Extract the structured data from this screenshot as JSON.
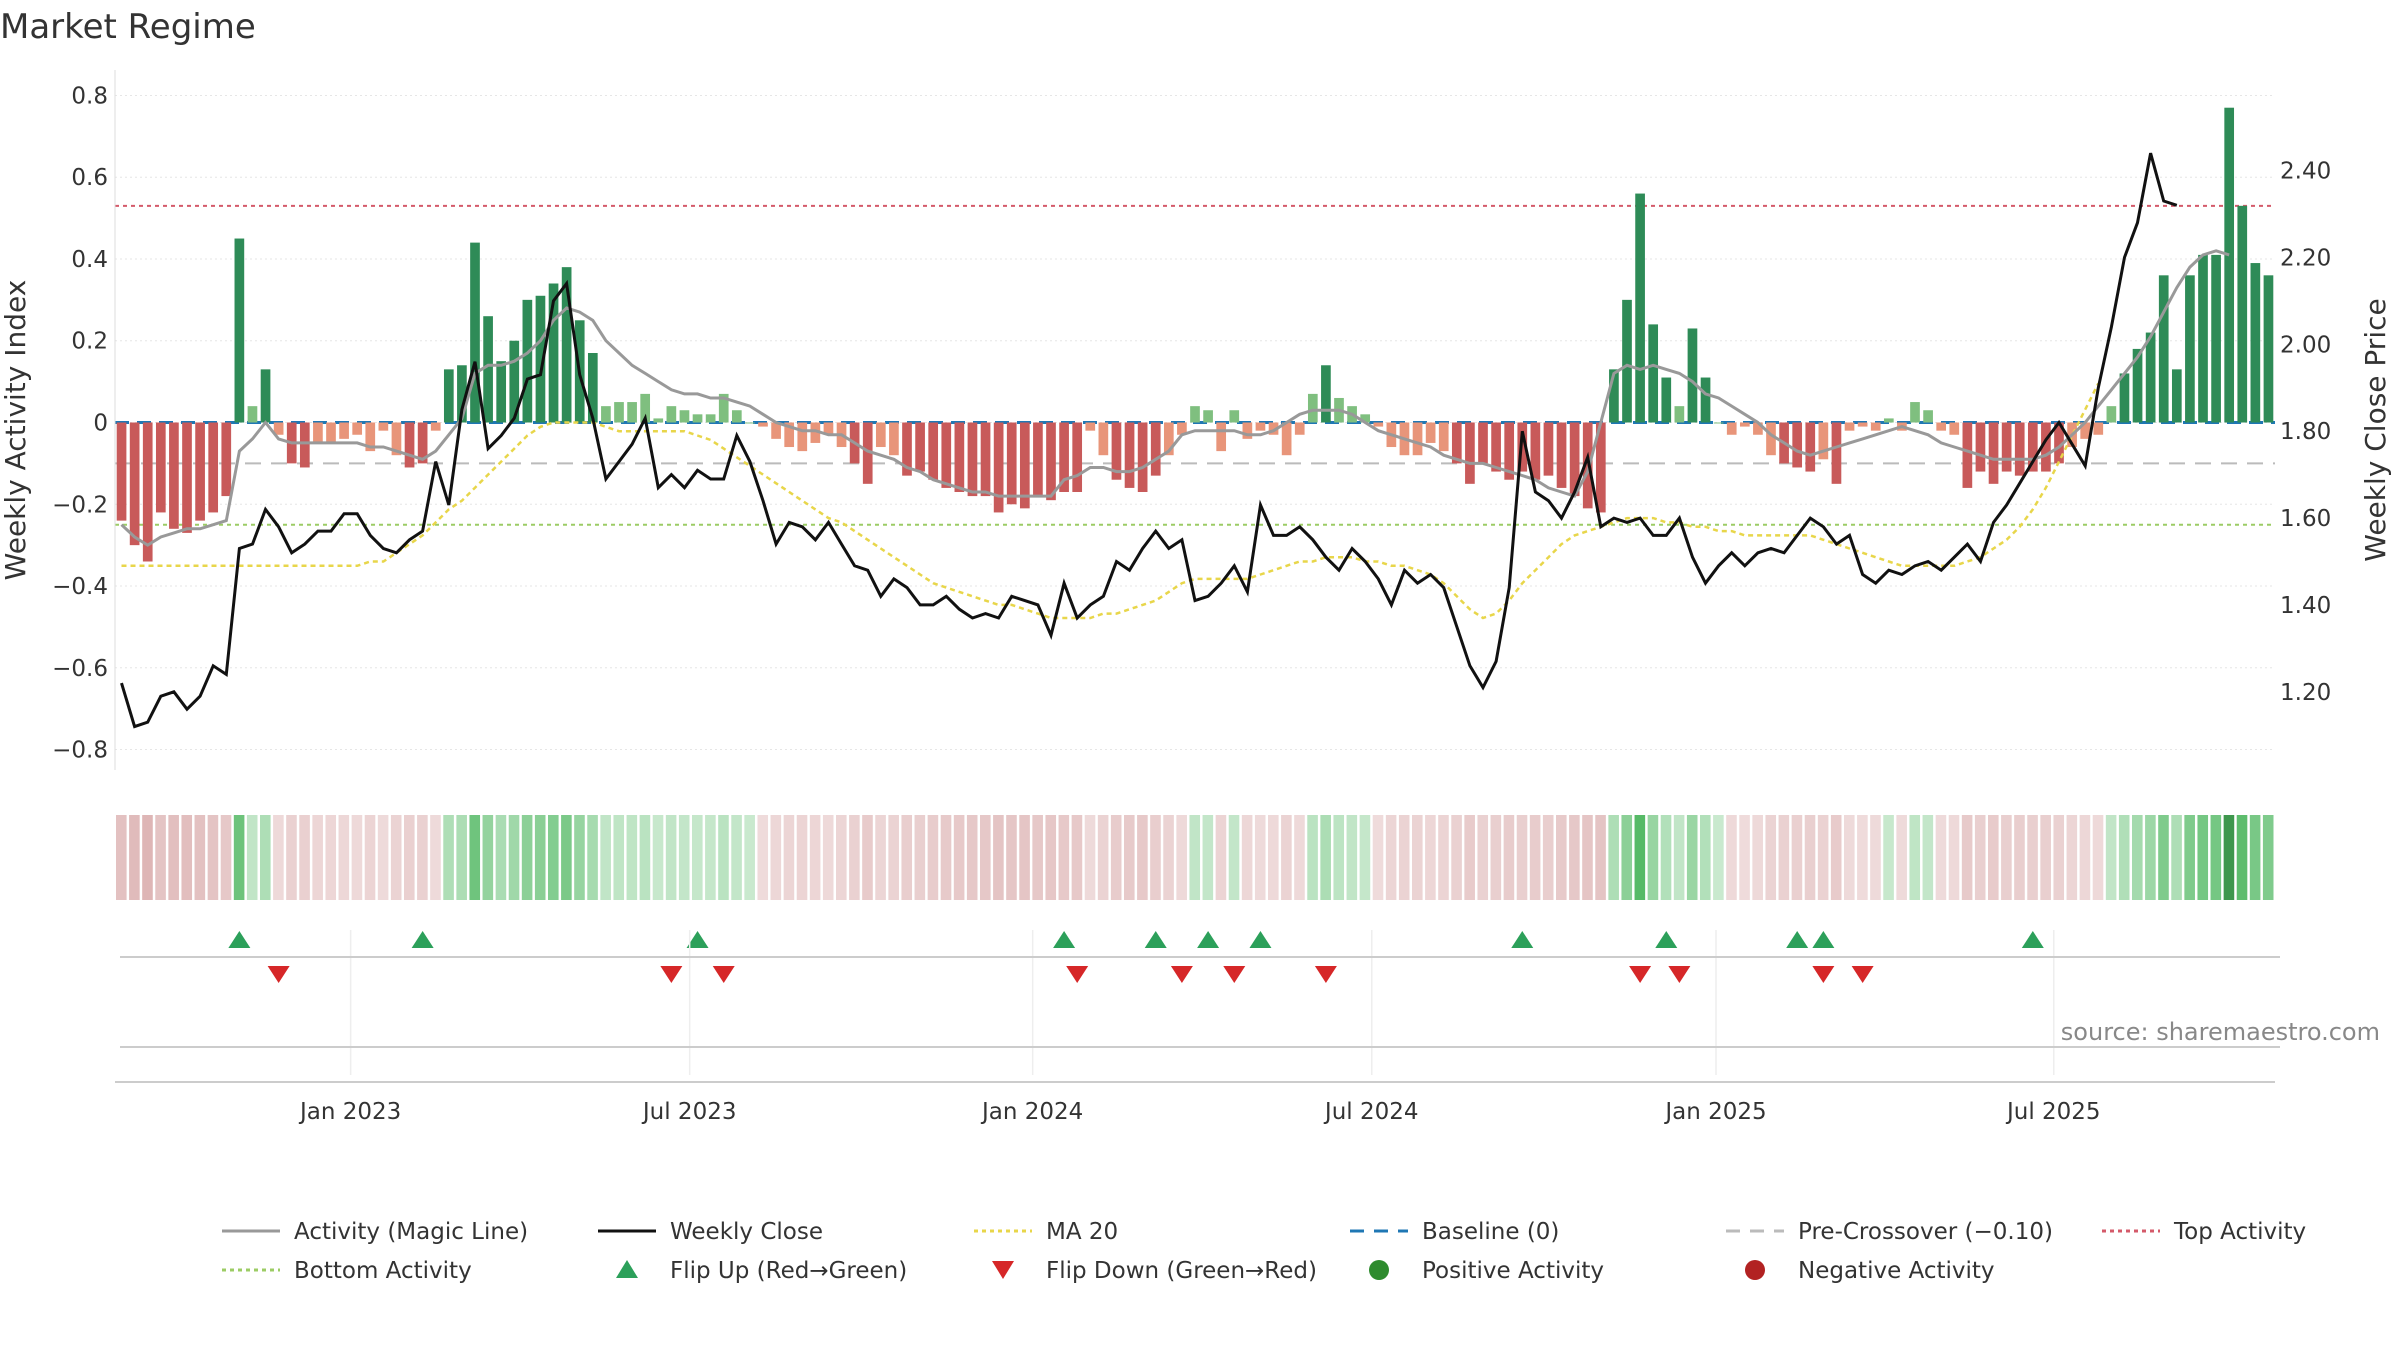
{
  "chart_data": {
    "type": "bar+line",
    "title": "Market Regime",
    "ylabel_left": "Weekly Activity Index",
    "ylabel_right": "Weekly Close Price",
    "ylim_left": [
      -0.85,
      0.85
    ],
    "ylim_right": [
      1.02,
      2.62
    ],
    "yticks_left": [
      "0.8",
      "0.6",
      "0.4",
      "0.2",
      "0",
      "−0.2",
      "−0.4",
      "−0.6",
      "−0.8"
    ],
    "yticks_left_values": [
      0.8,
      0.6,
      0.4,
      0.2,
      0,
      -0.2,
      -0.4,
      -0.6,
      -0.8
    ],
    "yticks_right": [
      "2.40",
      "2.20",
      "2.00",
      "1.80",
      "1.60",
      "1.40",
      "1.20"
    ],
    "yticks_right_values": [
      2.4,
      2.2,
      2.0,
      1.8,
      1.6,
      1.4,
      1.2
    ],
    "x_start": "2022-08-29",
    "xticks": [
      {
        "label": "Jan 2023",
        "week": 18
      },
      {
        "label": "Jul 2023",
        "week": 43.9
      },
      {
        "label": "Jan 2024",
        "week": 70.1
      },
      {
        "label": "Jul 2024",
        "week": 96
      },
      {
        "label": "Jan 2025",
        "week": 122.3
      },
      {
        "label": "Jul 2025",
        "week": 148.1
      }
    ],
    "series": [
      {
        "name": "Weekly Activity Index (bars)",
        "values": [
          -0.24,
          -0.3,
          -0.34,
          -0.22,
          -0.26,
          -0.27,
          -0.24,
          -0.22,
          -0.18,
          0.45,
          0.04,
          0.13,
          -0.03,
          -0.1,
          -0.11,
          -0.05,
          -0.05,
          -0.04,
          -0.03,
          -0.07,
          -0.02,
          -0.08,
          -0.11,
          -0.1,
          -0.02,
          0.13,
          0.14,
          0.44,
          0.26,
          0.15,
          0.2,
          0.3,
          0.31,
          0.34,
          0.38,
          0.25,
          0.17,
          0.04,
          0.05,
          0.05,
          0.07,
          0.01,
          0.04,
          0.03,
          0.02,
          0.02,
          0.07,
          0.03,
          0.0,
          -0.01,
          -0.04,
          -0.06,
          -0.07,
          -0.05,
          -0.03,
          -0.06,
          -0.1,
          -0.15,
          -0.06,
          -0.08,
          -0.13,
          -0.12,
          -0.14,
          -0.16,
          -0.17,
          -0.18,
          -0.18,
          -0.22,
          -0.2,
          -0.21,
          -0.18,
          -0.19,
          -0.17,
          -0.17,
          -0.02,
          -0.08,
          -0.14,
          -0.16,
          -0.17,
          -0.13,
          -0.08,
          -0.03,
          0.04,
          0.03,
          -0.07,
          0.03,
          -0.04,
          -0.02,
          -0.03,
          -0.08,
          -0.03,
          0.07,
          0.14,
          0.06,
          0.04,
          0.02,
          -0.01,
          -0.06,
          -0.08,
          -0.08,
          -0.05,
          -0.07,
          -0.1,
          -0.15,
          -0.1,
          -0.12,
          -0.14,
          -0.12,
          -0.14,
          -0.13,
          -0.16,
          -0.18,
          -0.21,
          -0.22,
          0.13,
          0.3,
          0.56,
          0.24,
          0.11,
          0.04,
          0.23,
          0.11,
          0.0,
          -0.03,
          -0.01,
          -0.03,
          -0.08,
          -0.1,
          -0.11,
          -0.12,
          -0.09,
          -0.15,
          -0.02,
          -0.01,
          -0.02,
          0.01,
          -0.02,
          0.05,
          0.03,
          -0.02,
          -0.03,
          -0.16,
          -0.12,
          -0.15,
          -0.12,
          -0.13,
          -0.12,
          -0.12,
          -0.1,
          -0.06,
          -0.04,
          -0.03,
          0.04,
          0.12,
          0.18,
          0.22,
          0.36,
          0.13,
          0.36,
          0.41,
          0.41,
          0.77,
          0.53,
          0.39,
          0.36
        ]
      },
      {
        "name": "Activity (Magic Line)",
        "values": [
          -0.25,
          -0.28,
          -0.3,
          -0.28,
          -0.27,
          -0.26,
          -0.26,
          -0.25,
          -0.24,
          -0.07,
          -0.04,
          0.0,
          -0.04,
          -0.05,
          -0.05,
          -0.05,
          -0.05,
          -0.05,
          -0.05,
          -0.06,
          -0.06,
          -0.07,
          -0.08,
          -0.09,
          -0.07,
          -0.03,
          0.01,
          0.12,
          0.14,
          0.14,
          0.15,
          0.17,
          0.2,
          0.25,
          0.28,
          0.27,
          0.25,
          0.2,
          0.17,
          0.14,
          0.12,
          0.1,
          0.08,
          0.07,
          0.07,
          0.06,
          0.06,
          0.05,
          0.04,
          0.02,
          0.0,
          -0.01,
          -0.02,
          -0.02,
          -0.03,
          -0.03,
          -0.05,
          -0.07,
          -0.08,
          -0.09,
          -0.11,
          -0.12,
          -0.14,
          -0.15,
          -0.16,
          -0.17,
          -0.17,
          -0.18,
          -0.18,
          -0.18,
          -0.18,
          -0.18,
          -0.14,
          -0.13,
          -0.11,
          -0.11,
          -0.12,
          -0.12,
          -0.11,
          -0.09,
          -0.07,
          -0.03,
          -0.02,
          -0.02,
          -0.02,
          -0.02,
          -0.03,
          -0.03,
          -0.02,
          0.0,
          0.02,
          0.03,
          0.03,
          0.03,
          0.02,
          0.0,
          -0.02,
          -0.03,
          -0.04,
          -0.05,
          -0.06,
          -0.08,
          -0.09,
          -0.1,
          -0.1,
          -0.11,
          -0.12,
          -0.13,
          -0.14,
          -0.16,
          -0.17,
          -0.18,
          -0.12,
          0.0,
          0.12,
          0.14,
          0.13,
          0.14,
          0.13,
          0.12,
          0.1,
          0.07,
          0.06,
          0.04,
          0.02,
          0.0,
          -0.03,
          -0.05,
          -0.07,
          -0.08,
          -0.07,
          -0.06,
          -0.05,
          -0.04,
          -0.03,
          -0.02,
          -0.01,
          -0.02,
          -0.03,
          -0.05,
          -0.06,
          -0.07,
          -0.08,
          -0.09,
          -0.09,
          -0.09,
          -0.09,
          -0.08,
          -0.06,
          -0.03,
          0.0,
          0.04,
          0.08,
          0.12,
          0.16,
          0.21,
          0.27,
          0.33,
          0.38,
          0.41,
          0.42,
          0.41
        ]
      },
      {
        "name": "Weekly Close",
        "axis": "right",
        "values": [
          1.22,
          1.12,
          1.13,
          1.19,
          1.2,
          1.16,
          1.19,
          1.26,
          1.24,
          1.53,
          1.54,
          1.62,
          1.58,
          1.52,
          1.54,
          1.57,
          1.57,
          1.61,
          1.61,
          1.56,
          1.53,
          1.52,
          1.55,
          1.57,
          1.73,
          1.63,
          1.85,
          1.96,
          1.76,
          1.79,
          1.83,
          1.92,
          1.93,
          2.1,
          2.14,
          1.93,
          1.83,
          1.69,
          1.73,
          1.77,
          1.83,
          1.67,
          1.7,
          1.67,
          1.71,
          1.69,
          1.69,
          1.79,
          1.73,
          1.64,
          1.54,
          1.59,
          1.58,
          1.55,
          1.59,
          1.54,
          1.49,
          1.48,
          1.42,
          1.46,
          1.44,
          1.4,
          1.4,
          1.42,
          1.39,
          1.37,
          1.38,
          1.37,
          1.42,
          1.41,
          1.4,
          1.33,
          1.45,
          1.37,
          1.4,
          1.42,
          1.5,
          1.48,
          1.53,
          1.57,
          1.53,
          1.55,
          1.41,
          1.42,
          1.45,
          1.49,
          1.43,
          1.63,
          1.56,
          1.56,
          1.58,
          1.55,
          1.51,
          1.48,
          1.53,
          1.5,
          1.46,
          1.4,
          1.48,
          1.45,
          1.47,
          1.44,
          1.35,
          1.26,
          1.21,
          1.27,
          1.44,
          1.8,
          1.66,
          1.64,
          1.6,
          1.66,
          1.74,
          1.58,
          1.6,
          1.59,
          1.6,
          1.56,
          1.56,
          1.6,
          1.51,
          1.45,
          1.49,
          1.52,
          1.49,
          1.52,
          1.53,
          1.52,
          1.56,
          1.6,
          1.58,
          1.54,
          1.56,
          1.47,
          1.45,
          1.48,
          1.47,
          1.49,
          1.5,
          1.48,
          1.51,
          1.54,
          1.5,
          1.59,
          1.63,
          1.68,
          1.73,
          1.78,
          1.82,
          1.77,
          1.72,
          1.9,
          2.04,
          2.2,
          2.28,
          2.44,
          2.33,
          2.32
        ]
      },
      {
        "name": "MA 20",
        "axis": "right",
        "values": [
          1.49,
          1.49,
          1.49,
          1.49,
          1.49,
          1.49,
          1.49,
          1.49,
          1.49,
          1.49,
          1.49,
          1.49,
          1.49,
          1.49,
          1.49,
          1.49,
          1.49,
          1.49,
          1.49,
          1.5,
          1.5,
          1.52,
          1.54,
          1.56,
          1.59,
          1.62,
          1.64,
          1.67,
          1.7,
          1.73,
          1.76,
          1.79,
          1.81,
          1.82,
          1.82,
          1.82,
          1.82,
          1.81,
          1.8,
          1.8,
          1.8,
          1.8,
          1.8,
          1.8,
          1.79,
          1.78,
          1.76,
          1.74,
          1.72,
          1.7,
          1.68,
          1.66,
          1.64,
          1.62,
          1.6,
          1.59,
          1.57,
          1.55,
          1.53,
          1.51,
          1.49,
          1.47,
          1.45,
          1.44,
          1.43,
          1.42,
          1.41,
          1.4,
          1.4,
          1.39,
          1.38,
          1.37,
          1.37,
          1.37,
          1.37,
          1.38,
          1.38,
          1.39,
          1.4,
          1.41,
          1.43,
          1.45,
          1.46,
          1.46,
          1.46,
          1.46,
          1.46,
          1.47,
          1.48,
          1.49,
          1.5,
          1.5,
          1.51,
          1.51,
          1.51,
          1.5,
          1.5,
          1.49,
          1.49,
          1.48,
          1.47,
          1.45,
          1.42,
          1.39,
          1.37,
          1.38,
          1.41,
          1.45,
          1.48,
          1.51,
          1.54,
          1.56,
          1.57,
          1.58,
          1.59,
          1.6,
          1.6,
          1.6,
          1.59,
          1.59,
          1.58,
          1.58,
          1.57,
          1.57,
          1.56,
          1.56,
          1.56,
          1.56,
          1.56,
          1.56,
          1.55,
          1.54,
          1.53,
          1.52,
          1.51,
          1.5,
          1.49,
          1.49,
          1.49,
          1.49,
          1.49,
          1.5,
          1.51,
          1.53,
          1.55,
          1.58,
          1.62,
          1.67,
          1.73,
          1.79,
          1.85,
          1.91
        ]
      }
    ],
    "reference_lines": [
      {
        "name": "Baseline (0)",
        "value": 0,
        "color": "#1f77b4"
      },
      {
        "name": "Pre-Crossover (−0.10)",
        "value": -0.1,
        "color": "#bbbbbb"
      },
      {
        "name": "Top Activity",
        "value": 0.53,
        "color": "#d45a6a"
      },
      {
        "name": "Bottom Activity",
        "value": -0.25,
        "color": "#9ccc65"
      }
    ],
    "flip_up_weeks": [
      9,
      23,
      44,
      72,
      79,
      83,
      87,
      107,
      118,
      128,
      130,
      146
    ],
    "flip_down_weeks": [
      12,
      42,
      46,
      73,
      81,
      85,
      92,
      116,
      119,
      130,
      133
    ],
    "source": "source: sharemaestro.com",
    "legend": [
      {
        "label": "Activity (Magic Line)",
        "symbol": "line",
        "color": "#999999"
      },
      {
        "label": "Weekly Close",
        "symbol": "line",
        "color": "#111111"
      },
      {
        "label": "MA 20",
        "symbol": "dotted",
        "color": "#e8d64a"
      },
      {
        "label": "Baseline (0)",
        "symbol": "dash",
        "color": "#1f77b4"
      },
      {
        "label": "Pre-Crossover (−0.10)",
        "symbol": "dash",
        "color": "#bbbbbb"
      },
      {
        "label": "Top Activity",
        "symbol": "dotted",
        "color": "#d45a6a"
      },
      {
        "label": "Bottom Activity",
        "symbol": "dotted",
        "color": "#9ccc65"
      },
      {
        "label": "Flip Up (Red→Green)",
        "symbol": "triangle-up",
        "color": "#2ca05a"
      },
      {
        "label": "Flip Down (Green→Red)",
        "symbol": "triangle-down",
        "color": "#d62728"
      },
      {
        "label": "Positive Activity",
        "symbol": "circle",
        "color": "#2e8b2e"
      },
      {
        "label": "Negative Activity",
        "symbol": "circle",
        "color": "#b22222"
      }
    ],
    "colors": {
      "pos_strong": "#2e8b57",
      "pos_weak": "#7fbf7f",
      "neg_strong": "#c85a5a",
      "neg_weak": "#e8957a"
    }
  }
}
